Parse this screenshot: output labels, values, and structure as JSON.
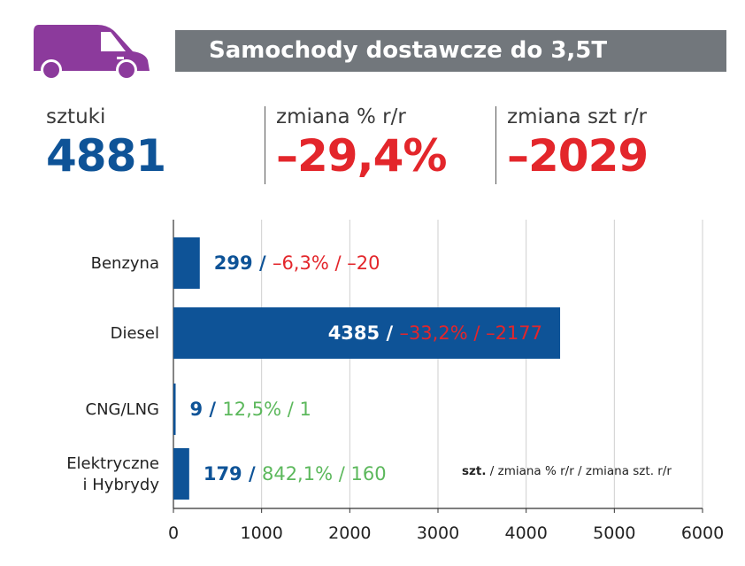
{
  "header": {
    "title": "Samochody dostawcze do 3,5T",
    "icon": "van-icon",
    "icon_color": "#8c3a9c",
    "bar_color": "#72777c"
  },
  "stats": [
    {
      "label": "sztuki",
      "value": "4881",
      "color": "#0e5397"
    },
    {
      "label": "zmiana % r/r",
      "value": "–29,4%",
      "color": "#e3262b"
    },
    {
      "label": "zmiana szt r/r",
      "value": "–2029",
      "color": "#e3262b"
    }
  ],
  "legend_note": {
    "bold": "szt.",
    "rest": " / zmiana % r/r / zmiana szt. r/r"
  },
  "chart_data": {
    "type": "bar",
    "orientation": "horizontal",
    "categories": [
      "Benzyna",
      "Diesel",
      "CNG/LNG",
      "Elektryczne\ni Hybrydy"
    ],
    "values": [
      299,
      4385,
      9,
      179
    ],
    "labels": [
      {
        "count": "299 /",
        "change": "–6,3% / –20",
        "change_color": "#e3262b"
      },
      {
        "count": "4385 /",
        "change": "–33,2% / –2177",
        "change_color": "#e3262b"
      },
      {
        "count": "9 /",
        "change": "12,5% / 1",
        "change_color": "#5cb85c"
      },
      {
        "count": "179 /",
        "change": "842,1% / 160",
        "change_color": "#5cb85c"
      }
    ],
    "xlim": [
      0,
      6000
    ],
    "xticks": [
      0,
      1000,
      2000,
      3000,
      4000,
      5000,
      6000
    ],
    "grid": true,
    "bar_color": "#0e5397"
  }
}
